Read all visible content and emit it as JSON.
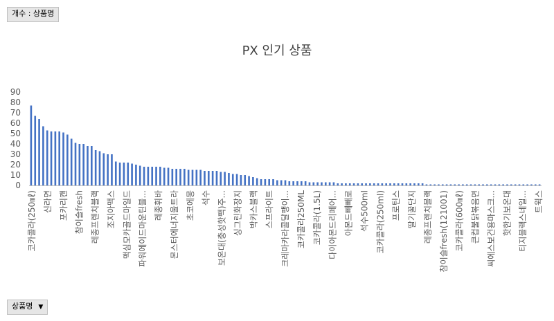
{
  "value_field": "개수 : 상품명",
  "axis_field": "상품명",
  "axis_field_icon": "dropdown-arrow-icon",
  "chart_data": {
    "type": "bar",
    "title": "PX 인기 상품",
    "ylim": [
      0,
      90
    ],
    "yticks": [
      0,
      10,
      20,
      30,
      40,
      50,
      60,
      70,
      80,
      90
    ],
    "grid": false,
    "legend": "none",
    "bar_color": "#4472c4",
    "values": [
      77,
      67,
      64,
      57,
      53,
      52,
      52,
      52,
      51,
      49,
      45,
      41,
      40,
      40,
      38,
      38,
      34,
      33,
      31,
      30,
      30,
      23,
      22,
      22,
      22,
      21,
      20,
      19,
      18,
      18,
      18,
      18,
      18,
      17,
      17,
      16,
      16,
      16,
      16,
      15,
      15,
      15,
      15,
      14,
      14,
      14,
      14,
      13,
      13,
      12,
      11,
      11,
      10,
      10,
      9,
      8,
      7,
      6,
      6,
      6,
      6,
      5,
      5,
      5,
      4,
      4,
      4,
      4,
      4,
      3,
      3,
      3,
      3,
      3,
      3,
      3,
      2,
      2,
      2,
      2,
      2,
      2,
      2,
      2,
      2,
      2,
      2,
      2,
      2,
      2,
      2,
      2,
      2,
      2,
      2,
      2,
      2,
      2,
      1,
      1,
      1,
      1,
      1,
      1,
      1,
      1,
      1,
      1,
      1,
      1,
      1,
      1,
      1,
      1,
      1,
      1,
      1,
      1,
      1,
      1,
      1,
      1,
      1,
      1,
      1,
      1,
      1
    ],
    "labeled_categories": [
      "코카콜라(250㎖)",
      "신라면",
      "포카리캔",
      "참이슬fresh",
      "레종프렌치블랙",
      "조지아맥스",
      "맥심모카골드마일드",
      "파워에이드마운틴블...",
      "레종휘바",
      "몬스터에너지울트라",
      "초코에몽",
      "석수",
      "보온대(충성핫팩)주...",
      "싱그린화장지",
      "박카스블랙",
      "스프라이트",
      "크레마카라콜달팽이...",
      "코카콜라250ML",
      "코카콜라(1.5L)",
      "다이아몬드리페어...",
      "아몬드빼빼로",
      "석수500ml",
      "코카콜라(250ml)",
      "프로틴스",
      "딸기꿀단지",
      "레종프렌치블랙",
      "참이슬fresh(121001)",
      "코카콜라(600㎖)",
      "큰컵불닭볶음면",
      "씨에스보건용마스크...",
      "핫한기보온대",
      "티지블랙스네일...",
      "트윅스"
    ]
  }
}
